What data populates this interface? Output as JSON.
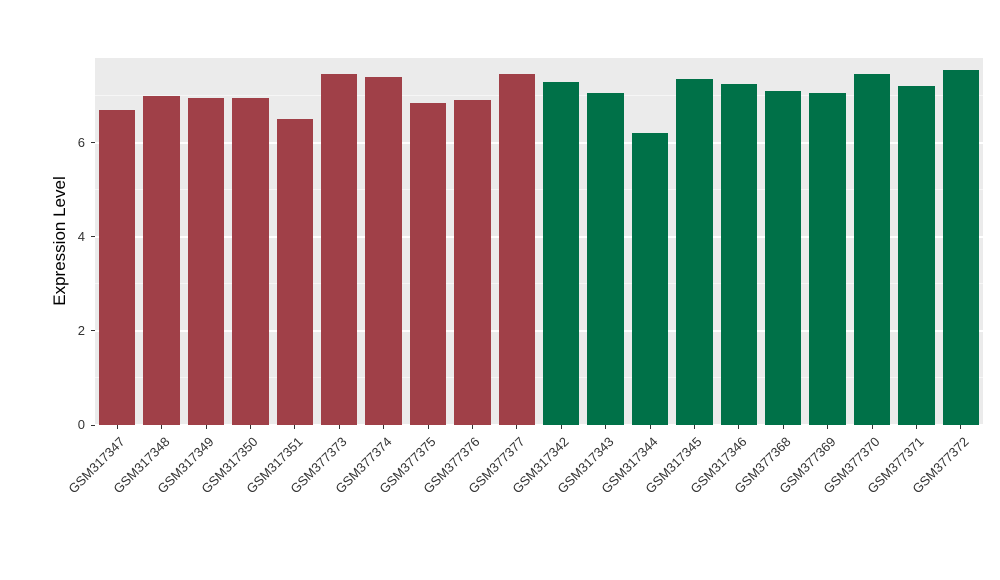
{
  "chart_data": {
    "type": "bar",
    "title": "",
    "xlabel": "",
    "ylabel": "Expression Level",
    "categories": [
      "GSM317347",
      "GSM317348",
      "GSM317349",
      "GSM317350",
      "GSM317351",
      "GSM377373",
      "GSM377374",
      "GSM377375",
      "GSM377376",
      "GSM377377",
      "GSM317342",
      "GSM317343",
      "GSM317344",
      "GSM317345",
      "GSM317346",
      "GSM377368",
      "GSM377369",
      "GSM377370",
      "GSM377371",
      "GSM377372"
    ],
    "values": [
      6.7,
      7.0,
      6.95,
      6.95,
      6.5,
      7.45,
      7.4,
      6.85,
      6.9,
      7.45,
      7.3,
      7.05,
      6.2,
      7.35,
      7.25,
      7.1,
      7.05,
      7.45,
      7.2,
      7.55
    ],
    "bar_colors": [
      "#A04048",
      "#A04048",
      "#A04048",
      "#A04048",
      "#A04048",
      "#A04048",
      "#A04048",
      "#A04048",
      "#A04048",
      "#A04048",
      "#007148",
      "#007148",
      "#007148",
      "#007148",
      "#007148",
      "#007148",
      "#007148",
      "#007148",
      "#007148",
      "#007148"
    ],
    "group_colors": {
      "left_group": "#A04048",
      "right_group": "#007148"
    },
    "ylim": [
      0,
      7.8
    ],
    "yticks_major": [
      0,
      2,
      4,
      6
    ],
    "yticks_minor": [
      1,
      3,
      5,
      7
    ],
    "grid": "on",
    "legend": "none",
    "panel_background": "#EBEBEB",
    "grid_color": "#FFFFFF",
    "axis_text_color": "#333333",
    "bar_width_fraction": 0.82
  }
}
